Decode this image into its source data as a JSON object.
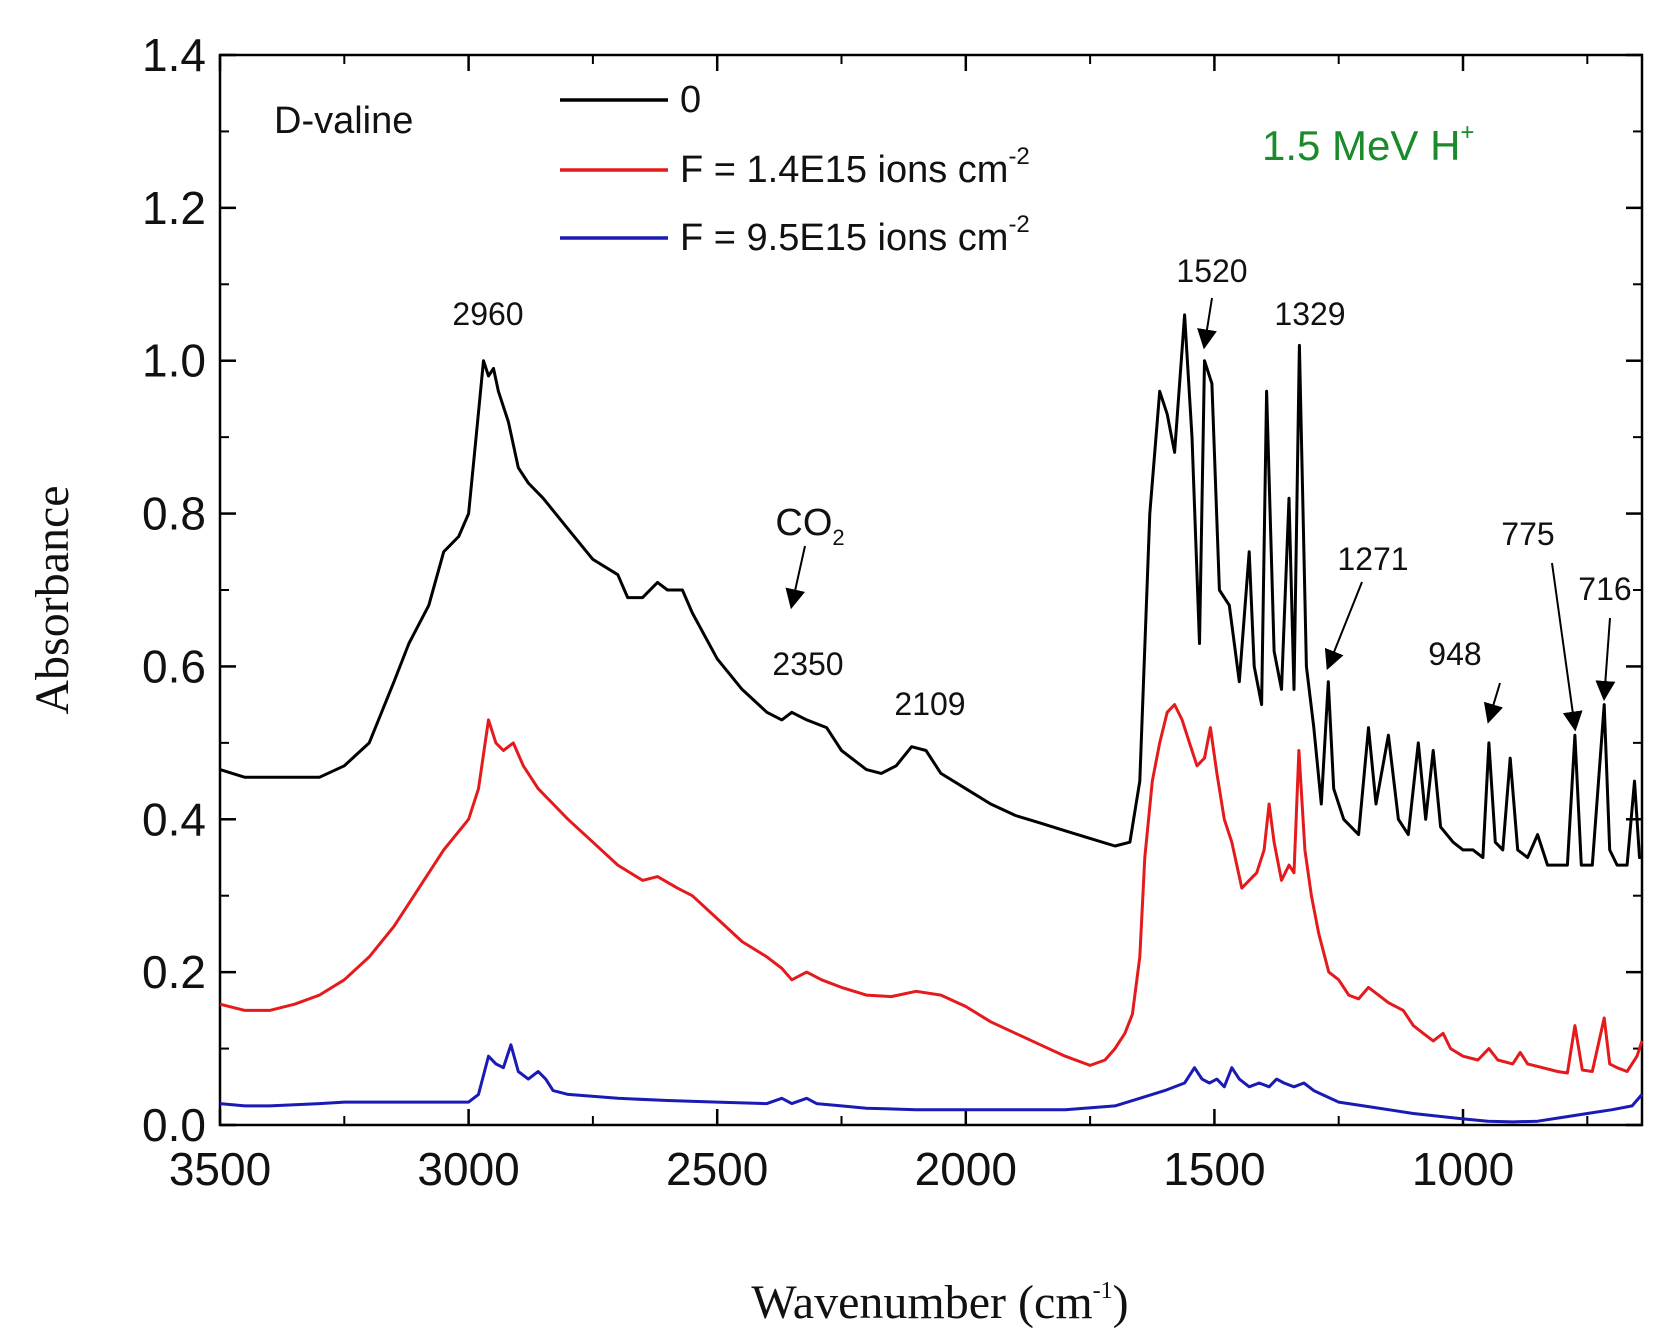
{
  "chart_data": {
    "type": "line",
    "title": "",
    "sample_label": "D-valine",
    "beam_label": {
      "main": "1.5 MeV H",
      "sup": "+",
      "color": "#1a8a2a"
    },
    "xlabel": {
      "main": "Wavenumber (cm",
      "sup": "-1",
      "tail": ")"
    },
    "ylabel": "Absorbance",
    "xlim": [
      3500,
      640
    ],
    "ylim": [
      0.0,
      1.4
    ],
    "x_ticks": [
      3500,
      3000,
      2500,
      2000,
      1500,
      1000
    ],
    "x_tick_labels": [
      "3500",
      "3000",
      "2500",
      "2000",
      "1500",
      "1000"
    ],
    "y_ticks": [
      0.0,
      0.2,
      0.4,
      0.6,
      0.8,
      1.0,
      1.2,
      1.4
    ],
    "y_tick_labels": [
      "0.0",
      "0.2",
      "0.4",
      "0.6",
      "0.8",
      "1.0",
      "1.2",
      "1.4"
    ],
    "series": [
      {
        "name": "0",
        "legend": {
          "main": "0",
          "sup": ""
        },
        "color": "#000000",
        "points": [
          [
            3500,
            0.465
          ],
          [
            3450,
            0.455
          ],
          [
            3400,
            0.455
          ],
          [
            3300,
            0.455
          ],
          [
            3250,
            0.47
          ],
          [
            3200,
            0.5
          ],
          [
            3150,
            0.58
          ],
          [
            3120,
            0.63
          ],
          [
            3080,
            0.68
          ],
          [
            3050,
            0.75
          ],
          [
            3020,
            0.77
          ],
          [
            3000,
            0.8
          ],
          [
            2985,
            0.9
          ],
          [
            2970,
            1.0
          ],
          [
            2960,
            0.98
          ],
          [
            2950,
            0.99
          ],
          [
            2940,
            0.96
          ],
          [
            2920,
            0.92
          ],
          [
            2900,
            0.86
          ],
          [
            2880,
            0.84
          ],
          [
            2850,
            0.82
          ],
          [
            2800,
            0.78
          ],
          [
            2750,
            0.74
          ],
          [
            2700,
            0.72
          ],
          [
            2680,
            0.69
          ],
          [
            2650,
            0.69
          ],
          [
            2620,
            0.71
          ],
          [
            2600,
            0.7
          ],
          [
            2570,
            0.7
          ],
          [
            2550,
            0.67
          ],
          [
            2500,
            0.61
          ],
          [
            2450,
            0.57
          ],
          [
            2400,
            0.54
          ],
          [
            2370,
            0.53
          ],
          [
            2350,
            0.54
          ],
          [
            2320,
            0.53
          ],
          [
            2280,
            0.52
          ],
          [
            2250,
            0.49
          ],
          [
            2200,
            0.465
          ],
          [
            2170,
            0.46
          ],
          [
            2140,
            0.47
          ],
          [
            2109,
            0.495
          ],
          [
            2080,
            0.49
          ],
          [
            2050,
            0.46
          ],
          [
            2000,
            0.44
          ],
          [
            1950,
            0.42
          ],
          [
            1900,
            0.405
          ],
          [
            1850,
            0.395
          ],
          [
            1800,
            0.385
          ],
          [
            1750,
            0.375
          ],
          [
            1700,
            0.365
          ],
          [
            1670,
            0.37
          ],
          [
            1650,
            0.45
          ],
          [
            1630,
            0.8
          ],
          [
            1610,
            0.96
          ],
          [
            1595,
            0.93
          ],
          [
            1580,
            0.88
          ],
          [
            1560,
            1.06
          ],
          [
            1545,
            0.9
          ],
          [
            1530,
            0.63
          ],
          [
            1520,
            1.0
          ],
          [
            1505,
            0.97
          ],
          [
            1490,
            0.7
          ],
          [
            1470,
            0.68
          ],
          [
            1450,
            0.58
          ],
          [
            1430,
            0.75
          ],
          [
            1420,
            0.6
          ],
          [
            1405,
            0.55
          ],
          [
            1395,
            0.96
          ],
          [
            1380,
            0.62
          ],
          [
            1365,
            0.57
          ],
          [
            1350,
            0.82
          ],
          [
            1340,
            0.57
          ],
          [
            1329,
            1.02
          ],
          [
            1315,
            0.6
          ],
          [
            1300,
            0.52
          ],
          [
            1285,
            0.42
          ],
          [
            1271,
            0.58
          ],
          [
            1260,
            0.44
          ],
          [
            1240,
            0.4
          ],
          [
            1210,
            0.38
          ],
          [
            1190,
            0.52
          ],
          [
            1175,
            0.42
          ],
          [
            1150,
            0.51
          ],
          [
            1130,
            0.4
          ],
          [
            1110,
            0.38
          ],
          [
            1090,
            0.5
          ],
          [
            1075,
            0.4
          ],
          [
            1060,
            0.49
          ],
          [
            1045,
            0.39
          ],
          [
            1020,
            0.37
          ],
          [
            1000,
            0.36
          ],
          [
            980,
            0.36
          ],
          [
            960,
            0.35
          ],
          [
            948,
            0.5
          ],
          [
            935,
            0.37
          ],
          [
            920,
            0.36
          ],
          [
            905,
            0.48
          ],
          [
            890,
            0.36
          ],
          [
            870,
            0.35
          ],
          [
            850,
            0.38
          ],
          [
            830,
            0.34
          ],
          [
            810,
            0.34
          ],
          [
            790,
            0.34
          ],
          [
            775,
            0.51
          ],
          [
            762,
            0.34
          ],
          [
            740,
            0.34
          ],
          [
            716,
            0.55
          ],
          [
            705,
            0.36
          ],
          [
            690,
            0.34
          ],
          [
            670,
            0.34
          ],
          [
            655,
            0.45
          ],
          [
            645,
            0.35
          ],
          [
            640,
            0.35
          ]
        ]
      },
      {
        "name": "F = 1.4E15 ions cm-2",
        "legend": {
          "main": "F = 1.4E15 ions cm",
          "sup": "-2"
        },
        "color": "#e41a1c",
        "points": [
          [
            3500,
            0.158
          ],
          [
            3450,
            0.15
          ],
          [
            3400,
            0.15
          ],
          [
            3350,
            0.158
          ],
          [
            3300,
            0.17
          ],
          [
            3250,
            0.19
          ],
          [
            3200,
            0.22
          ],
          [
            3150,
            0.26
          ],
          [
            3100,
            0.31
          ],
          [
            3050,
            0.36
          ],
          [
            3000,
            0.4
          ],
          [
            2980,
            0.44
          ],
          [
            2960,
            0.53
          ],
          [
            2945,
            0.5
          ],
          [
            2930,
            0.49
          ],
          [
            2910,
            0.5
          ],
          [
            2890,
            0.47
          ],
          [
            2860,
            0.44
          ],
          [
            2830,
            0.42
          ],
          [
            2800,
            0.4
          ],
          [
            2750,
            0.37
          ],
          [
            2700,
            0.34
          ],
          [
            2650,
            0.32
          ],
          [
            2620,
            0.325
          ],
          [
            2580,
            0.31
          ],
          [
            2550,
            0.3
          ],
          [
            2500,
            0.27
          ],
          [
            2450,
            0.24
          ],
          [
            2400,
            0.22
          ],
          [
            2370,
            0.205
          ],
          [
            2350,
            0.19
          ],
          [
            2320,
            0.2
          ],
          [
            2290,
            0.19
          ],
          [
            2250,
            0.18
          ],
          [
            2200,
            0.17
          ],
          [
            2150,
            0.168
          ],
          [
            2100,
            0.175
          ],
          [
            2050,
            0.17
          ],
          [
            2000,
            0.155
          ],
          [
            1950,
            0.135
          ],
          [
            1900,
            0.12
          ],
          [
            1850,
            0.105
          ],
          [
            1800,
            0.09
          ],
          [
            1750,
            0.078
          ],
          [
            1720,
            0.085
          ],
          [
            1700,
            0.1
          ],
          [
            1680,
            0.12
          ],
          [
            1665,
            0.145
          ],
          [
            1650,
            0.22
          ],
          [
            1640,
            0.35
          ],
          [
            1625,
            0.45
          ],
          [
            1610,
            0.5
          ],
          [
            1595,
            0.54
          ],
          [
            1580,
            0.55
          ],
          [
            1565,
            0.53
          ],
          [
            1550,
            0.5
          ],
          [
            1535,
            0.47
          ],
          [
            1520,
            0.48
          ],
          [
            1508,
            0.52
          ],
          [
            1495,
            0.46
          ],
          [
            1480,
            0.4
          ],
          [
            1465,
            0.37
          ],
          [
            1445,
            0.31
          ],
          [
            1430,
            0.32
          ],
          [
            1415,
            0.33
          ],
          [
            1400,
            0.36
          ],
          [
            1390,
            0.42
          ],
          [
            1380,
            0.37
          ],
          [
            1365,
            0.32
          ],
          [
            1350,
            0.34
          ],
          [
            1340,
            0.33
          ],
          [
            1330,
            0.49
          ],
          [
            1318,
            0.36
          ],
          [
            1305,
            0.3
          ],
          [
            1290,
            0.25
          ],
          [
            1270,
            0.2
          ],
          [
            1250,
            0.19
          ],
          [
            1230,
            0.17
          ],
          [
            1210,
            0.165
          ],
          [
            1190,
            0.18
          ],
          [
            1170,
            0.17
          ],
          [
            1150,
            0.16
          ],
          [
            1120,
            0.15
          ],
          [
            1100,
            0.13
          ],
          [
            1080,
            0.12
          ],
          [
            1060,
            0.11
          ],
          [
            1040,
            0.12
          ],
          [
            1025,
            0.1
          ],
          [
            1000,
            0.09
          ],
          [
            970,
            0.085
          ],
          [
            948,
            0.1
          ],
          [
            930,
            0.085
          ],
          [
            900,
            0.08
          ],
          [
            885,
            0.095
          ],
          [
            870,
            0.08
          ],
          [
            840,
            0.075
          ],
          [
            810,
            0.07
          ],
          [
            790,
            0.068
          ],
          [
            775,
            0.13
          ],
          [
            760,
            0.072
          ],
          [
            740,
            0.07
          ],
          [
            716,
            0.14
          ],
          [
            705,
            0.08
          ],
          [
            690,
            0.075
          ],
          [
            670,
            0.07
          ],
          [
            650,
            0.09
          ],
          [
            640,
            0.11
          ]
        ]
      },
      {
        "name": "F = 9.5E15 ions cm-2",
        "legend": {
          "main": "F = 9.5E15 ions cm",
          "sup": "-2"
        },
        "color": "#1a1ab4",
        "points": [
          [
            3500,
            0.028
          ],
          [
            3450,
            0.025
          ],
          [
            3400,
            0.025
          ],
          [
            3300,
            0.028
          ],
          [
            3250,
            0.03
          ],
          [
            3200,
            0.03
          ],
          [
            3100,
            0.03
          ],
          [
            3050,
            0.03
          ],
          [
            3000,
            0.03
          ],
          [
            2980,
            0.04
          ],
          [
            2960,
            0.09
          ],
          [
            2945,
            0.08
          ],
          [
            2930,
            0.075
          ],
          [
            2915,
            0.105
          ],
          [
            2900,
            0.07
          ],
          [
            2880,
            0.06
          ],
          [
            2860,
            0.07
          ],
          [
            2845,
            0.06
          ],
          [
            2830,
            0.045
          ],
          [
            2800,
            0.04
          ],
          [
            2700,
            0.035
          ],
          [
            2600,
            0.032
          ],
          [
            2500,
            0.03
          ],
          [
            2400,
            0.028
          ],
          [
            2370,
            0.035
          ],
          [
            2350,
            0.028
          ],
          [
            2320,
            0.035
          ],
          [
            2300,
            0.028
          ],
          [
            2250,
            0.025
          ],
          [
            2200,
            0.022
          ],
          [
            2100,
            0.02
          ],
          [
            2000,
            0.02
          ],
          [
            1900,
            0.02
          ],
          [
            1800,
            0.02
          ],
          [
            1700,
            0.025
          ],
          [
            1650,
            0.035
          ],
          [
            1600,
            0.045
          ],
          [
            1560,
            0.055
          ],
          [
            1540,
            0.075
          ],
          [
            1525,
            0.06
          ],
          [
            1510,
            0.055
          ],
          [
            1495,
            0.06
          ],
          [
            1480,
            0.05
          ],
          [
            1465,
            0.075
          ],
          [
            1450,
            0.06
          ],
          [
            1430,
            0.05
          ],
          [
            1410,
            0.055
          ],
          [
            1390,
            0.05
          ],
          [
            1375,
            0.06
          ],
          [
            1360,
            0.055
          ],
          [
            1340,
            0.05
          ],
          [
            1320,
            0.055
          ],
          [
            1300,
            0.045
          ],
          [
            1250,
            0.03
          ],
          [
            1200,
            0.025
          ],
          [
            1100,
            0.015
          ],
          [
            1000,
            0.008
          ],
          [
            950,
            0.005
          ],
          [
            900,
            0.004
          ],
          [
            850,
            0.005
          ],
          [
            800,
            0.01
          ],
          [
            750,
            0.015
          ],
          [
            700,
            0.02
          ],
          [
            660,
            0.025
          ],
          [
            640,
            0.04
          ]
        ]
      }
    ],
    "annotations": [
      {
        "label": "2960",
        "x": 2960
      },
      {
        "label": "1520",
        "x": 1520,
        "arrow_to": [
          1520,
          1.02
        ]
      },
      {
        "label": "1329",
        "x": 1329
      },
      {
        "label": "CO",
        "sub": "2",
        "x": 2350,
        "arrow_to": [
          2350,
          0.68
        ]
      },
      {
        "label": "2350",
        "x": 2350
      },
      {
        "label": "2109",
        "x": 2109
      },
      {
        "label": "1271",
        "x": 1271,
        "arrow_to": [
          1271,
          0.6
        ]
      },
      {
        "label": "948",
        "x": 948,
        "arrow_to": [
          948,
          0.53
        ]
      },
      {
        "label": "775",
        "x": 775,
        "arrow_to": [
          775,
          0.52
        ]
      },
      {
        "label": "716",
        "x": 716,
        "arrow_to": [
          716,
          0.56
        ]
      }
    ]
  }
}
